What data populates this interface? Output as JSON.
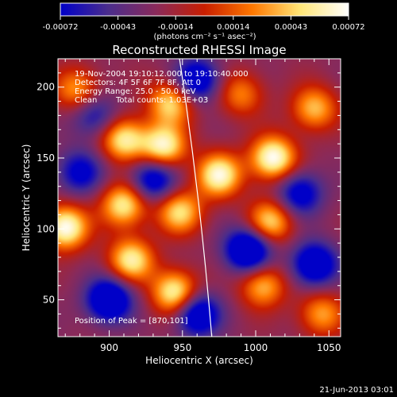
{
  "chart_data": {
    "type": "heatmap",
    "title": "Reconstructed RHESSI Image",
    "xlabel": "Heliocentric X (arcsec)",
    "ylabel": "Heliocentric Y (arcsec)",
    "xlim": [
      865,
      1058
    ],
    "ylim": [
      24,
      220
    ],
    "x_ticks": [
      900,
      950,
      1000,
      1050
    ],
    "y_ticks": [
      50,
      100,
      150,
      200
    ],
    "colorbar": {
      "ticks": [
        "-0.00072",
        "-0.00043",
        "-0.00014",
        "0.00014",
        "0.00043",
        "0.00072"
      ],
      "unit_label": "(photons cm⁻² s⁻¹ asec⁻²)",
      "range": [
        -0.00072,
        0.00072
      ],
      "colormap": [
        "#0000c8",
        "#4b2d8c",
        "#8a2a5a",
        "#c81e00",
        "#ff7800",
        "#ffe678",
        "#ffffff"
      ]
    },
    "annotations": {
      "time_range": "19-Nov-2004 19:10:12.000 to 19:10:40.000",
      "detectors": "Detectors: 4F 5F 6F 7F 8F, Att 0",
      "energy_range": "Energy Range: 25.0 - 50.0 keV",
      "clean": "Clean",
      "total_counts": "Total counts: 1.03E+03",
      "peak_position": "Position of Peak = [870,101]"
    },
    "limb_arc": [
      [
        948,
        220
      ],
      [
        970,
        24
      ]
    ],
    "sources": [
      {
        "x": 910,
        "y": 163,
        "amp": 1.0
      },
      {
        "x": 937,
        "y": 158,
        "amp": 1.1
      },
      {
        "x": 942,
        "y": 189,
        "amp": 0.9
      },
      {
        "x": 878,
        "y": 198,
        "amp": 0.7
      },
      {
        "x": 1012,
        "y": 150,
        "amp": 1.2
      },
      {
        "x": 975,
        "y": 138,
        "amp": 1.1
      },
      {
        "x": 1040,
        "y": 185,
        "amp": 0.8
      },
      {
        "x": 870,
        "y": 101,
        "amp": 1.2
      },
      {
        "x": 910,
        "y": 117,
        "amp": 1.0
      },
      {
        "x": 948,
        "y": 112,
        "amp": 0.9
      },
      {
        "x": 1010,
        "y": 105,
        "amp": 0.9
      },
      {
        "x": 915,
        "y": 78,
        "amp": 1.0
      },
      {
        "x": 945,
        "y": 55,
        "amp": 1.1
      },
      {
        "x": 1005,
        "y": 60,
        "amp": 0.8
      },
      {
        "x": 1045,
        "y": 40,
        "amp": 0.7
      },
      {
        "x": 990,
        "y": 195,
        "amp": 0.6
      },
      {
        "x": 995,
        "y": 85,
        "amp": -1.2
      },
      {
        "x": 930,
        "y": 135,
        "amp": -0.9
      },
      {
        "x": 900,
        "y": 50,
        "amp": -1.1
      },
      {
        "x": 1040,
        "y": 75,
        "amp": -1.0
      },
      {
        "x": 960,
        "y": 205,
        "amp": -0.9
      },
      {
        "x": 1030,
        "y": 125,
        "amp": -0.8
      },
      {
        "x": 890,
        "y": 180,
        "amp": -0.6
      },
      {
        "x": 960,
        "y": 40,
        "amp": -1.0
      },
      {
        "x": 880,
        "y": 140,
        "amp": -0.7
      }
    ]
  },
  "footer": {
    "date": "21-Jun-2013 03:01"
  }
}
